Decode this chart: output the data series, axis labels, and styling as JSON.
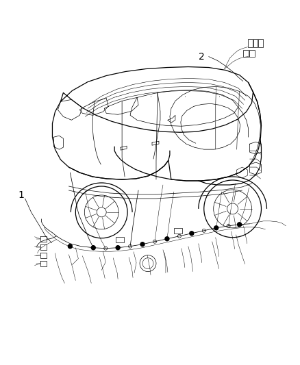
{
  "background_color": "#ffffff",
  "fig_width": 4.38,
  "fig_height": 5.33,
  "dpi": 100,
  "label_1": "1",
  "label_2": "2",
  "text_color": "#000000",
  "line_color": "#000000",
  "font_size_label": 10,
  "car_body_lw": 0.9,
  "car_detail_lw": 0.5,
  "wire_lw": 0.55,
  "wire_thin_lw": 0.35
}
